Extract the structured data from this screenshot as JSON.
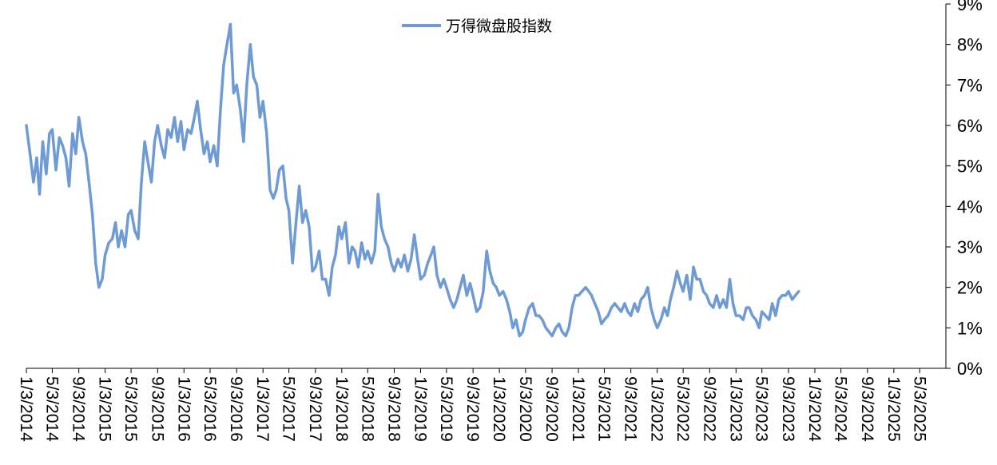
{
  "chart_data": {
    "type": "line",
    "legend_position": "top-center",
    "grid": false,
    "ylim": [
      0,
      9
    ],
    "y_axis_side": "right",
    "y_ticks": [
      "0%",
      "1%",
      "2%",
      "3%",
      "4%",
      "5%",
      "6%",
      "7%",
      "8%",
      "9%"
    ],
    "x_tick_labels": [
      "1/3/2014",
      "5/3/2014",
      "9/3/2014",
      "1/3/2015",
      "5/3/2015",
      "9/3/2015",
      "1/3/2016",
      "5/3/2016",
      "9/3/2016",
      "1/3/2017",
      "5/3/2017",
      "9/3/2017",
      "1/3/2018",
      "5/3/2018",
      "9/3/2018",
      "1/3/2019",
      "5/3/2019",
      "9/3/2019",
      "1/3/2020",
      "5/3/2020",
      "9/3/2020",
      "1/3/2021",
      "5/3/2021",
      "9/3/2021",
      "1/3/2022",
      "5/3/2022",
      "9/3/2022",
      "1/3/2023",
      "5/3/2023",
      "9/3/2023",
      "1/3/2024",
      "5/3/2024",
      "9/3/2024",
      "1/3/2025",
      "5/3/2025"
    ],
    "series": [
      {
        "name": "万得微盘股指数",
        "color": "#6f9bd5",
        "unit": "%",
        "points": [
          [
            "2014-01-03",
            6.0
          ],
          [
            "2014-01-20",
            5.3
          ],
          [
            "2014-02-05",
            4.6
          ],
          [
            "2014-02-20",
            5.2
          ],
          [
            "2014-03-05",
            4.3
          ],
          [
            "2014-03-20",
            5.6
          ],
          [
            "2014-04-05",
            4.8
          ],
          [
            "2014-04-20",
            5.8
          ],
          [
            "2014-05-03",
            5.9
          ],
          [
            "2014-05-20",
            4.9
          ],
          [
            "2014-06-05",
            5.7
          ],
          [
            "2014-06-20",
            5.5
          ],
          [
            "2014-07-05",
            5.2
          ],
          [
            "2014-07-20",
            4.5
          ],
          [
            "2014-08-05",
            5.8
          ],
          [
            "2014-08-20",
            5.3
          ],
          [
            "2014-09-03",
            6.2
          ],
          [
            "2014-09-20",
            5.6
          ],
          [
            "2014-10-05",
            5.3
          ],
          [
            "2014-10-20",
            4.6
          ],
          [
            "2014-11-05",
            3.8
          ],
          [
            "2014-11-20",
            2.6
          ],
          [
            "2014-12-05",
            2.0
          ],
          [
            "2014-12-20",
            2.2
          ],
          [
            "2015-01-03",
            2.8
          ],
          [
            "2015-01-20",
            3.1
          ],
          [
            "2015-02-05",
            3.2
          ],
          [
            "2015-02-20",
            3.6
          ],
          [
            "2015-03-05",
            3.0
          ],
          [
            "2015-03-20",
            3.4
          ],
          [
            "2015-04-05",
            3.0
          ],
          [
            "2015-04-20",
            3.8
          ],
          [
            "2015-05-03",
            3.9
          ],
          [
            "2015-05-20",
            3.4
          ],
          [
            "2015-06-05",
            3.2
          ],
          [
            "2015-06-20",
            4.6
          ],
          [
            "2015-07-05",
            5.6
          ],
          [
            "2015-07-20",
            5.1
          ],
          [
            "2015-08-05",
            4.6
          ],
          [
            "2015-08-20",
            5.6
          ],
          [
            "2015-09-03",
            6.0
          ],
          [
            "2015-09-20",
            5.5
          ],
          [
            "2015-10-05",
            5.2
          ],
          [
            "2015-10-20",
            5.9
          ],
          [
            "2015-11-05",
            5.7
          ],
          [
            "2015-11-20",
            6.2
          ],
          [
            "2015-12-05",
            5.6
          ],
          [
            "2015-12-20",
            6.1
          ],
          [
            "2016-01-03",
            5.4
          ],
          [
            "2016-01-20",
            5.9
          ],
          [
            "2016-02-05",
            5.8
          ],
          [
            "2016-02-20",
            6.2
          ],
          [
            "2016-03-05",
            6.6
          ],
          [
            "2016-03-20",
            5.9
          ],
          [
            "2016-04-05",
            5.3
          ],
          [
            "2016-04-20",
            5.6
          ],
          [
            "2016-05-03",
            5.1
          ],
          [
            "2016-05-20",
            5.5
          ],
          [
            "2016-06-05",
            5.0
          ],
          [
            "2016-06-20",
            6.4
          ],
          [
            "2016-07-05",
            7.5
          ],
          [
            "2016-07-20",
            8.0
          ],
          [
            "2016-08-05",
            8.5
          ],
          [
            "2016-08-20",
            6.8
          ],
          [
            "2016-09-03",
            7.0
          ],
          [
            "2016-09-20",
            6.4
          ],
          [
            "2016-10-05",
            5.6
          ],
          [
            "2016-10-20",
            7.0
          ],
          [
            "2016-11-05",
            8.0
          ],
          [
            "2016-11-20",
            7.2
          ],
          [
            "2016-12-05",
            7.0
          ],
          [
            "2016-12-20",
            6.2
          ],
          [
            "2017-01-03",
            6.6
          ],
          [
            "2017-01-20",
            5.8
          ],
          [
            "2017-02-05",
            4.4
          ],
          [
            "2017-02-20",
            4.2
          ],
          [
            "2017-03-05",
            4.4
          ],
          [
            "2017-03-20",
            4.9
          ],
          [
            "2017-04-05",
            5.0
          ],
          [
            "2017-04-20",
            4.2
          ],
          [
            "2017-05-03",
            3.9
          ],
          [
            "2017-05-20",
            2.6
          ],
          [
            "2017-06-05",
            3.6
          ],
          [
            "2017-06-20",
            4.5
          ],
          [
            "2017-07-05",
            3.6
          ],
          [
            "2017-07-20",
            3.9
          ],
          [
            "2017-08-05",
            3.5
          ],
          [
            "2017-08-20",
            2.4
          ],
          [
            "2017-09-03",
            2.5
          ],
          [
            "2017-09-20",
            2.9
          ],
          [
            "2017-10-05",
            2.2
          ],
          [
            "2017-10-20",
            2.2
          ],
          [
            "2017-11-05",
            1.8
          ],
          [
            "2017-11-20",
            2.5
          ],
          [
            "2017-12-05",
            2.8
          ],
          [
            "2017-12-20",
            3.5
          ],
          [
            "2018-01-03",
            3.2
          ],
          [
            "2018-01-20",
            3.6
          ],
          [
            "2018-02-05",
            2.6
          ],
          [
            "2018-02-20",
            3.0
          ],
          [
            "2018-03-05",
            2.9
          ],
          [
            "2018-03-20",
            2.5
          ],
          [
            "2018-04-05",
            3.1
          ],
          [
            "2018-04-20",
            2.7
          ],
          [
            "2018-05-03",
            2.9
          ],
          [
            "2018-05-20",
            2.6
          ],
          [
            "2018-06-05",
            2.9
          ],
          [
            "2018-06-20",
            4.3
          ],
          [
            "2018-07-05",
            3.5
          ],
          [
            "2018-07-20",
            3.2
          ],
          [
            "2018-08-05",
            3.0
          ],
          [
            "2018-08-20",
            2.6
          ],
          [
            "2018-09-03",
            2.4
          ],
          [
            "2018-09-20",
            2.7
          ],
          [
            "2018-10-05",
            2.5
          ],
          [
            "2018-10-20",
            2.8
          ],
          [
            "2018-11-05",
            2.4
          ],
          [
            "2018-11-20",
            2.7
          ],
          [
            "2018-12-05",
            3.3
          ],
          [
            "2018-12-20",
            2.7
          ],
          [
            "2019-01-03",
            2.2
          ],
          [
            "2019-01-20",
            2.3
          ],
          [
            "2019-02-05",
            2.6
          ],
          [
            "2019-02-20",
            2.8
          ],
          [
            "2019-03-05",
            3.0
          ],
          [
            "2019-03-20",
            2.3
          ],
          [
            "2019-04-05",
            2.0
          ],
          [
            "2019-04-20",
            2.2
          ],
          [
            "2019-05-03",
            2.0
          ],
          [
            "2019-05-20",
            1.7
          ],
          [
            "2019-06-05",
            1.5
          ],
          [
            "2019-06-20",
            1.7
          ],
          [
            "2019-07-05",
            2.0
          ],
          [
            "2019-07-20",
            2.3
          ],
          [
            "2019-08-05",
            1.8
          ],
          [
            "2019-08-20",
            2.1
          ],
          [
            "2019-09-03",
            1.8
          ],
          [
            "2019-09-20",
            1.4
          ],
          [
            "2019-10-05",
            1.5
          ],
          [
            "2019-10-20",
            1.9
          ],
          [
            "2019-11-05",
            2.9
          ],
          [
            "2019-11-20",
            2.4
          ],
          [
            "2019-12-05",
            2.1
          ],
          [
            "2019-12-20",
            2.0
          ],
          [
            "2020-01-03",
            1.8
          ],
          [
            "2020-01-20",
            1.9
          ],
          [
            "2020-02-05",
            1.7
          ],
          [
            "2020-02-20",
            1.4
          ],
          [
            "2020-03-05",
            1.0
          ],
          [
            "2020-03-20",
            1.2
          ],
          [
            "2020-04-05",
            0.8
          ],
          [
            "2020-04-20",
            0.9
          ],
          [
            "2020-05-03",
            1.2
          ],
          [
            "2020-05-20",
            1.5
          ],
          [
            "2020-06-05",
            1.6
          ],
          [
            "2020-06-20",
            1.3
          ],
          [
            "2020-07-05",
            1.3
          ],
          [
            "2020-07-20",
            1.2
          ],
          [
            "2020-08-05",
            1.0
          ],
          [
            "2020-08-20",
            0.9
          ],
          [
            "2020-09-03",
            0.8
          ],
          [
            "2020-09-20",
            1.0
          ],
          [
            "2020-10-05",
            1.1
          ],
          [
            "2020-10-20",
            0.9
          ],
          [
            "2020-11-05",
            0.8
          ],
          [
            "2020-11-20",
            1.0
          ],
          [
            "2020-12-05",
            1.5
          ],
          [
            "2020-12-20",
            1.8
          ],
          [
            "2021-01-03",
            1.8
          ],
          [
            "2021-01-20",
            1.9
          ],
          [
            "2021-02-05",
            2.0
          ],
          [
            "2021-02-20",
            1.9
          ],
          [
            "2021-03-05",
            1.8
          ],
          [
            "2021-03-20",
            1.6
          ],
          [
            "2021-04-05",
            1.4
          ],
          [
            "2021-04-20",
            1.1
          ],
          [
            "2021-05-03",
            1.2
          ],
          [
            "2021-05-20",
            1.3
          ],
          [
            "2021-06-05",
            1.5
          ],
          [
            "2021-06-20",
            1.6
          ],
          [
            "2021-07-05",
            1.5
          ],
          [
            "2021-07-20",
            1.4
          ],
          [
            "2021-08-05",
            1.6
          ],
          [
            "2021-08-20",
            1.4
          ],
          [
            "2021-09-03",
            1.3
          ],
          [
            "2021-09-20",
            1.6
          ],
          [
            "2021-10-05",
            1.4
          ],
          [
            "2021-10-20",
            1.7
          ],
          [
            "2021-11-05",
            1.8
          ],
          [
            "2021-11-20",
            2.0
          ],
          [
            "2021-12-05",
            1.5
          ],
          [
            "2021-12-20",
            1.2
          ],
          [
            "2022-01-03",
            1.0
          ],
          [
            "2022-01-20",
            1.2
          ],
          [
            "2022-02-05",
            1.5
          ],
          [
            "2022-02-20",
            1.3
          ],
          [
            "2022-03-05",
            1.7
          ],
          [
            "2022-03-20",
            2.0
          ],
          [
            "2022-04-05",
            2.4
          ],
          [
            "2022-04-20",
            2.1
          ],
          [
            "2022-05-03",
            1.9
          ],
          [
            "2022-05-20",
            2.3
          ],
          [
            "2022-06-05",
            1.7
          ],
          [
            "2022-06-20",
            2.5
          ],
          [
            "2022-07-05",
            2.2
          ],
          [
            "2022-07-20",
            2.2
          ],
          [
            "2022-08-05",
            1.9
          ],
          [
            "2022-08-20",
            1.8
          ],
          [
            "2022-09-03",
            1.6
          ],
          [
            "2022-09-20",
            1.5
          ],
          [
            "2022-10-05",
            1.8
          ],
          [
            "2022-10-20",
            1.5
          ],
          [
            "2022-11-05",
            1.7
          ],
          [
            "2022-11-20",
            1.5
          ],
          [
            "2022-12-05",
            2.2
          ],
          [
            "2022-12-20",
            1.6
          ],
          [
            "2023-01-03",
            1.3
          ],
          [
            "2023-01-20",
            1.3
          ],
          [
            "2023-02-05",
            1.2
          ],
          [
            "2023-02-20",
            1.5
          ],
          [
            "2023-03-05",
            1.5
          ],
          [
            "2023-03-20",
            1.3
          ],
          [
            "2023-04-05",
            1.2
          ],
          [
            "2023-04-20",
            1.0
          ],
          [
            "2023-05-03",
            1.4
          ],
          [
            "2023-05-20",
            1.3
          ],
          [
            "2023-06-05",
            1.2
          ],
          [
            "2023-06-20",
            1.6
          ],
          [
            "2023-07-05",
            1.3
          ],
          [
            "2023-07-20",
            1.7
          ],
          [
            "2023-08-05",
            1.8
          ],
          [
            "2023-08-20",
            1.8
          ],
          [
            "2023-09-03",
            1.9
          ],
          [
            "2023-09-20",
            1.7
          ],
          [
            "2023-10-05",
            1.8
          ],
          [
            "2023-10-20",
            1.9
          ]
        ]
      }
    ]
  }
}
